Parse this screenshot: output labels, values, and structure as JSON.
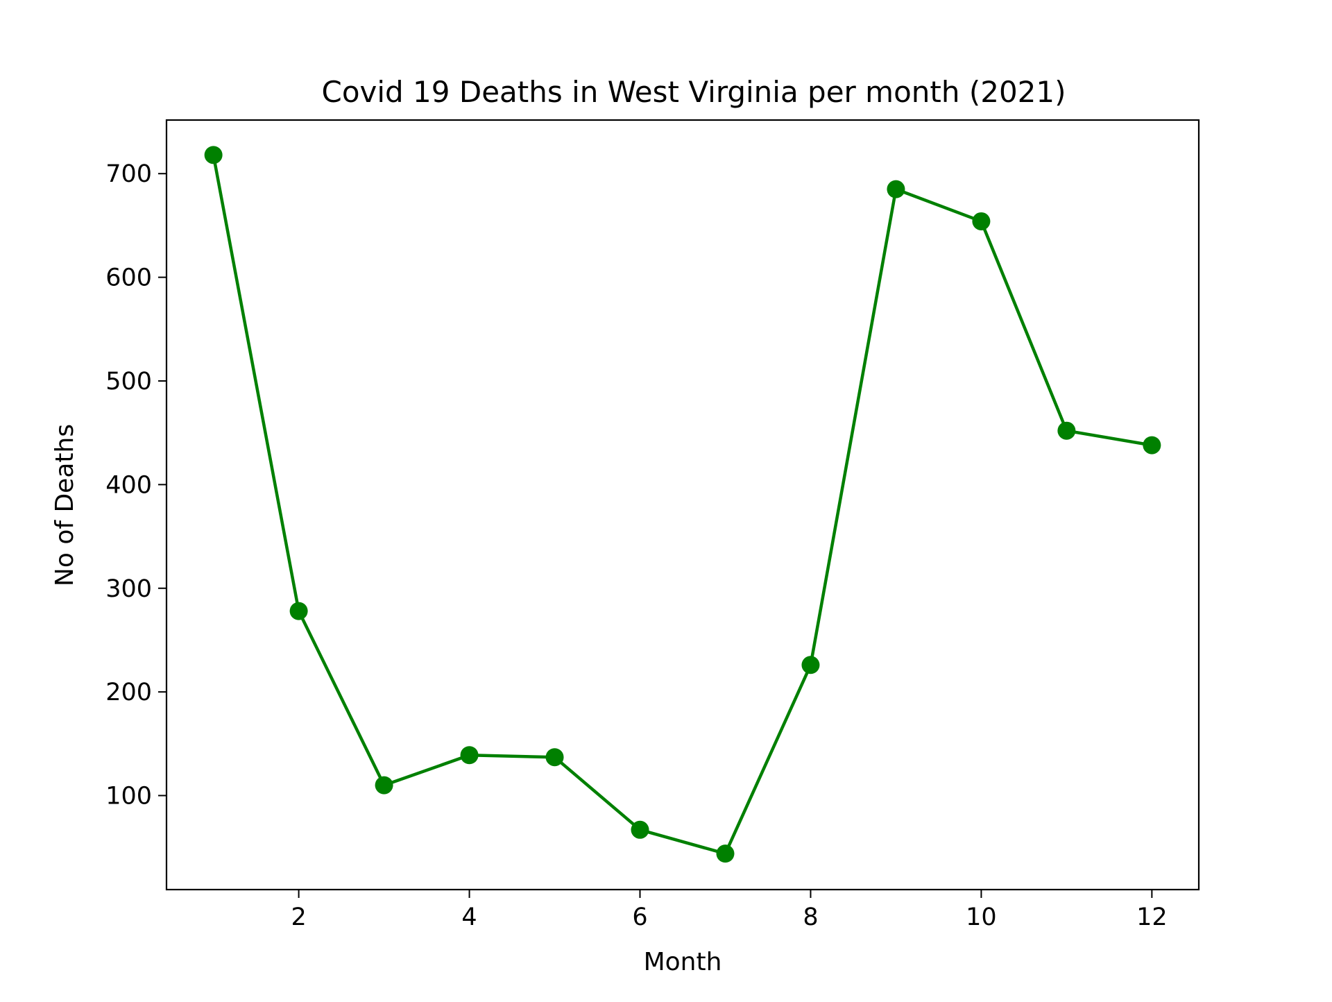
{
  "chart_data": {
    "type": "line",
    "title": "Covid 19 Deaths in West Virginia per month (2021)",
    "xlabel": "Month",
    "ylabel": "No of Deaths",
    "x": [
      1,
      2,
      3,
      4,
      5,
      6,
      7,
      8,
      9,
      10,
      11,
      12
    ],
    "series": [
      {
        "values": [
          718,
          278,
          110,
          139,
          137,
          67,
          44,
          226,
          685,
          654,
          452,
          438
        ],
        "color": "#008000",
        "marker": "circle"
      }
    ],
    "xlim": [
      0.45,
      12.55
    ],
    "ylim": [
      9.3,
      751.7
    ],
    "xticks": [
      2,
      4,
      6,
      8,
      10,
      12
    ],
    "yticks": [
      100,
      200,
      300,
      400,
      500,
      600,
      700
    ],
    "grid": false,
    "legend": "none"
  }
}
